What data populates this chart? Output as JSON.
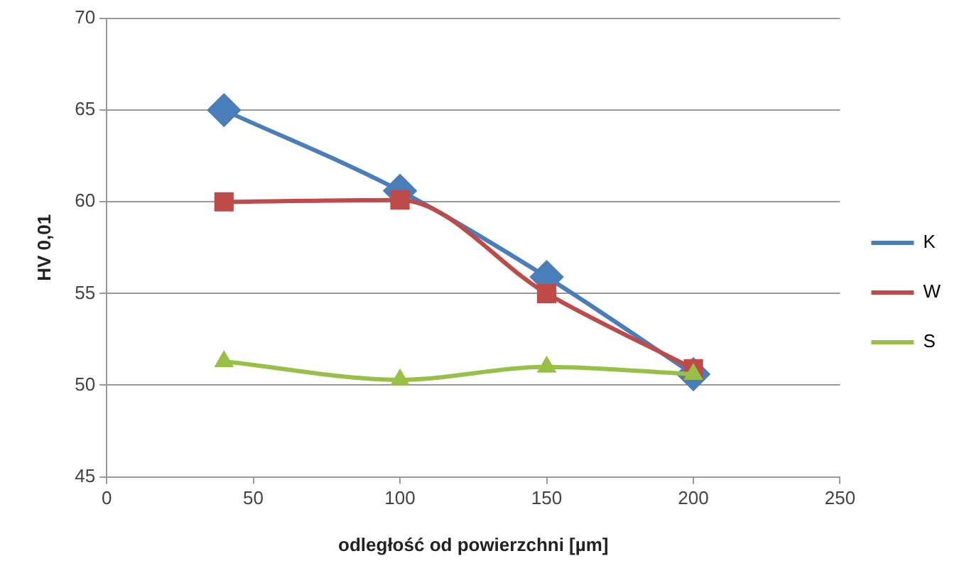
{
  "chart_data": {
    "type": "line",
    "xlabel": "odległość od powierzchni [µm]",
    "ylabel": "HV 0,01",
    "x": [
      40,
      100,
      150,
      200
    ],
    "series": [
      {
        "name": "K",
        "color": "#4a7ebb",
        "marker": "diamond",
        "values": [
          65,
          60.6,
          55.9,
          50.6
        ]
      },
      {
        "name": "W",
        "color": "#be4b48",
        "marker": "square",
        "values": [
          60,
          60.1,
          55,
          50.9
        ]
      },
      {
        "name": "S",
        "color": "#98c047",
        "marker": "triangle",
        "values": [
          51.3,
          50.3,
          51,
          50.6
        ]
      }
    ],
    "xlim": [
      0,
      250
    ],
    "xticks": [
      0,
      50,
      100,
      150,
      200,
      250
    ],
    "ylim": [
      45,
      70
    ],
    "yticks": [
      45,
      50,
      55,
      60,
      65,
      70
    ],
    "grid": "y",
    "legend": "right"
  }
}
